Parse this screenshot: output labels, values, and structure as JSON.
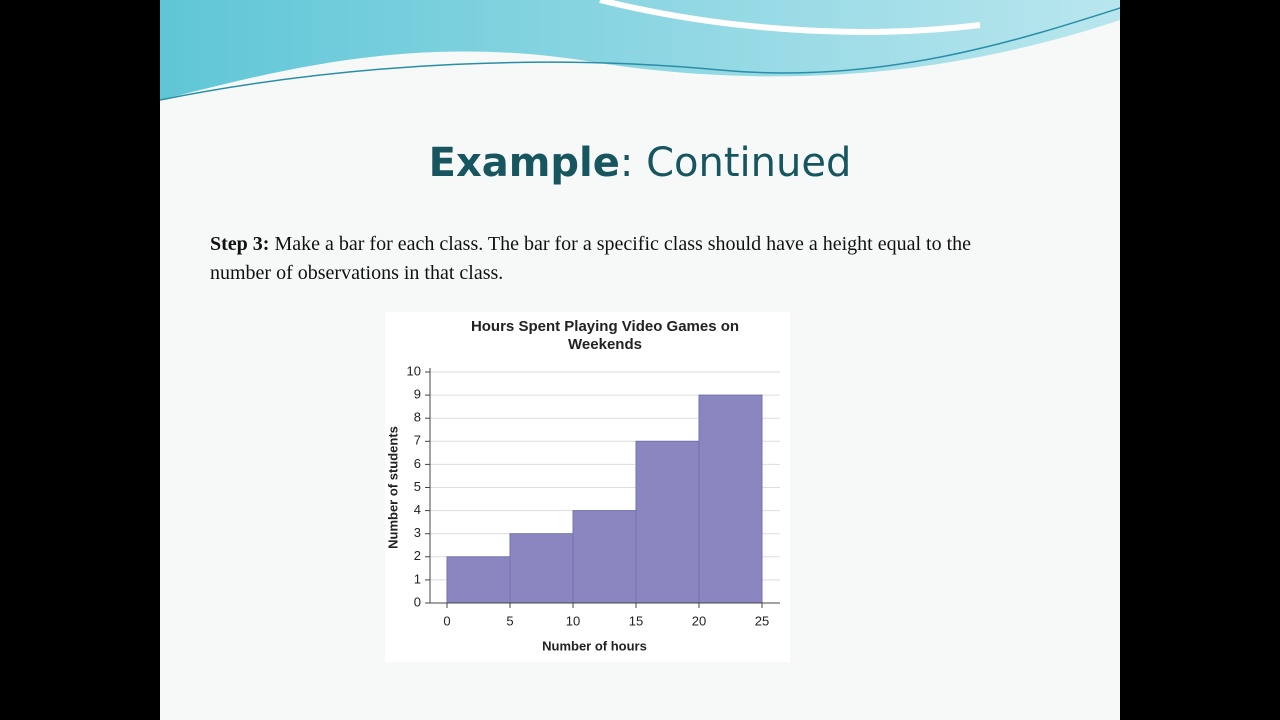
{
  "slide": {
    "title_bold": "Example",
    "title_rest": ": Continued",
    "step_label": "Step 3:",
    "step_text": " Make a bar for each class. The bar for a specific class should have a height equal to the number of observations in that class."
  },
  "chart_data": {
    "type": "histogram",
    "title": "Hours Spent Playing Video Games on Weekends",
    "x_label": "Number of hours",
    "y_label": "Number of students",
    "bins": [
      0,
      5,
      10,
      15,
      20,
      25
    ],
    "counts": [
      2,
      3,
      4,
      7,
      9
    ],
    "color": "#8a86c0",
    "xlim": [
      0,
      25
    ],
    "ylim": [
      0,
      10
    ],
    "xticks": [
      0,
      5,
      10,
      15,
      20,
      25
    ],
    "yticks": [
      0,
      1,
      2,
      3,
      4,
      5,
      6,
      7,
      8,
      9,
      10
    ],
    "grid": true
  }
}
